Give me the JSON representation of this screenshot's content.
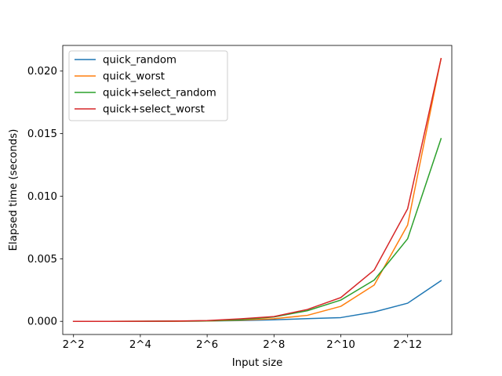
{
  "chart_data": {
    "type": "line",
    "title": "",
    "xlabel": "Input size",
    "ylabel": "Elapsed time (seconds)",
    "x": [
      4,
      8,
      16,
      32,
      64,
      128,
      256,
      512,
      1024,
      2048,
      4096,
      8192
    ],
    "x_scale": "log2",
    "xlim": [
      3.2,
      10240
    ],
    "ylim": [
      -0.00105,
      0.02205
    ],
    "grid": false,
    "legend_position": "top-left",
    "x_ticks": [
      {
        "value": 4,
        "label": "2^2"
      },
      {
        "value": 16,
        "label": "2^4"
      },
      {
        "value": 64,
        "label": "2^6"
      },
      {
        "value": 256,
        "label": "2^8"
      },
      {
        "value": 1024,
        "label": "2^10"
      },
      {
        "value": 4096,
        "label": "2^12"
      }
    ],
    "y_ticks": [
      {
        "value": 0.0,
        "label": "0.000"
      },
      {
        "value": 0.005,
        "label": "0.005"
      },
      {
        "value": 0.01,
        "label": "0.010"
      },
      {
        "value": 0.015,
        "label": "0.015"
      },
      {
        "value": 0.02,
        "label": "0.020"
      }
    ],
    "series": [
      {
        "name": "quick_random",
        "color": "#1f77b4",
        "values": [
          0.0,
          0.0,
          0.0,
          1e-05,
          3e-05,
          6e-05,
          0.00012,
          0.00022,
          0.0003,
          0.00075,
          0.00145,
          0.00325
        ]
      },
      {
        "name": "quick_worst",
        "color": "#ff7f0e",
        "values": [
          0.0,
          0.0,
          1e-05,
          1e-05,
          3e-05,
          9e-05,
          0.00021,
          0.00048,
          0.0012,
          0.0029,
          0.0077,
          0.021
        ]
      },
      {
        "name": "quick+select_random",
        "color": "#2ca02c",
        "values": [
          0.0,
          0.0,
          1e-05,
          2e-05,
          4e-05,
          0.00012,
          0.00035,
          0.00085,
          0.0017,
          0.0033,
          0.0066,
          0.0146
        ]
      },
      {
        "name": "quick+select_worst",
        "color": "#d62728",
        "values": [
          0.0,
          0.0,
          1e-05,
          2e-05,
          6e-05,
          0.0002,
          0.00038,
          0.00095,
          0.0019,
          0.0041,
          0.009,
          0.021
        ]
      }
    ]
  }
}
